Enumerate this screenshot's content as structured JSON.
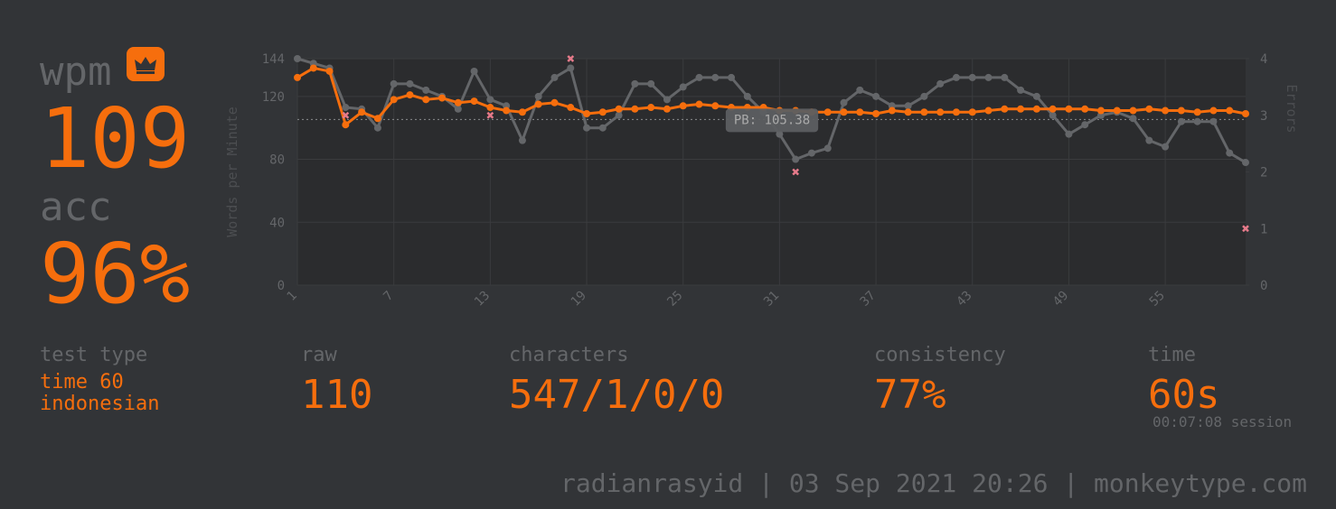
{
  "stats": {
    "wpm_label": "wpm",
    "wpm": 109,
    "acc_label": "acc",
    "acc": "96%"
  },
  "details": {
    "test_type": {
      "label": "test type",
      "lines": [
        "time 60",
        "indonesian"
      ]
    },
    "raw": {
      "label": "raw",
      "value": 110
    },
    "characters": {
      "label": "characters",
      "value": "547/1/0/0"
    },
    "consistency": {
      "label": "consistency",
      "value": "77%"
    },
    "time": {
      "label": "time",
      "value": "60s",
      "session": "00:07:08 session"
    }
  },
  "footer": "radianrasyid | 03 Sep 2021 20:26 | monkeytype.com",
  "chart_data": {
    "type": "line",
    "ylabel": "Words per Minute",
    "y2label": "Errors",
    "x": [
      1,
      2,
      3,
      4,
      5,
      6,
      7,
      8,
      9,
      10,
      11,
      12,
      13,
      14,
      15,
      16,
      17,
      18,
      19,
      20,
      21,
      22,
      23,
      24,
      25,
      26,
      27,
      28,
      29,
      30,
      31,
      32,
      33,
      34,
      35,
      36,
      37,
      38,
      39,
      40,
      41,
      42,
      43,
      44,
      45,
      46,
      47,
      48,
      49,
      50,
      51,
      52,
      53,
      54,
      55,
      56,
      57,
      58,
      59,
      60
    ],
    "xlim": [
      1,
      60
    ],
    "xticks": [
      1,
      7,
      13,
      19,
      25,
      31,
      37,
      43,
      49,
      55
    ],
    "ylim": [
      0,
      144
    ],
    "yticks": [
      0,
      40,
      80,
      120,
      144
    ],
    "y2lim": [
      0,
      4
    ],
    "y2ticks": [
      0,
      1,
      2,
      3,
      4
    ],
    "grid": true,
    "series": [
      {
        "name": "raw",
        "color": "#646669",
        "values": [
          144,
          141,
          138,
          113,
          112,
          100,
          128,
          128,
          124,
          120,
          112,
          136,
          118,
          114,
          92,
          120,
          132,
          138,
          100,
          100,
          108,
          128,
          128,
          118,
          126,
          132,
          132,
          132,
          120,
          110,
          96,
          80,
          84,
          87,
          116,
          124,
          120,
          114,
          114,
          120,
          128,
          132,
          132,
          132,
          132,
          124,
          120,
          108,
          96,
          102,
          108,
          110,
          106,
          92,
          88,
          104,
          104,
          104,
          84,
          78
        ]
      },
      {
        "name": "wpm",
        "color": "#f66e0d",
        "values": [
          132,
          138,
          136,
          102,
          110,
          106,
          118,
          121,
          118,
          119,
          116,
          117,
          113,
          111,
          110,
          115,
          116,
          113,
          109,
          110,
          112,
          112,
          113,
          112,
          114,
          115,
          114,
          113,
          113,
          113,
          111,
          111,
          110,
          110,
          110,
          110,
          109,
          111,
          110,
          110,
          110,
          110,
          110,
          111,
          112,
          112,
          112,
          112,
          112,
          112,
          111,
          111,
          111,
          112,
          111,
          111,
          110,
          111,
          111,
          109
        ]
      },
      {
        "name": "errors",
        "color": "#e67a8a",
        "axis": "y2",
        "values": [
          null,
          null,
          null,
          3,
          null,
          null,
          null,
          null,
          null,
          null,
          null,
          null,
          3,
          null,
          null,
          null,
          null,
          4,
          null,
          null,
          null,
          null,
          null,
          null,
          null,
          null,
          null,
          null,
          null,
          null,
          null,
          2,
          null,
          null,
          null,
          null,
          null,
          null,
          null,
          null,
          null,
          null,
          null,
          null,
          null,
          null,
          null,
          null,
          null,
          null,
          null,
          null,
          null,
          null,
          null,
          null,
          null,
          null,
          null,
          1
        ]
      }
    ],
    "pb": {
      "value": 105.38,
      "label": "PB: 105.38"
    }
  }
}
